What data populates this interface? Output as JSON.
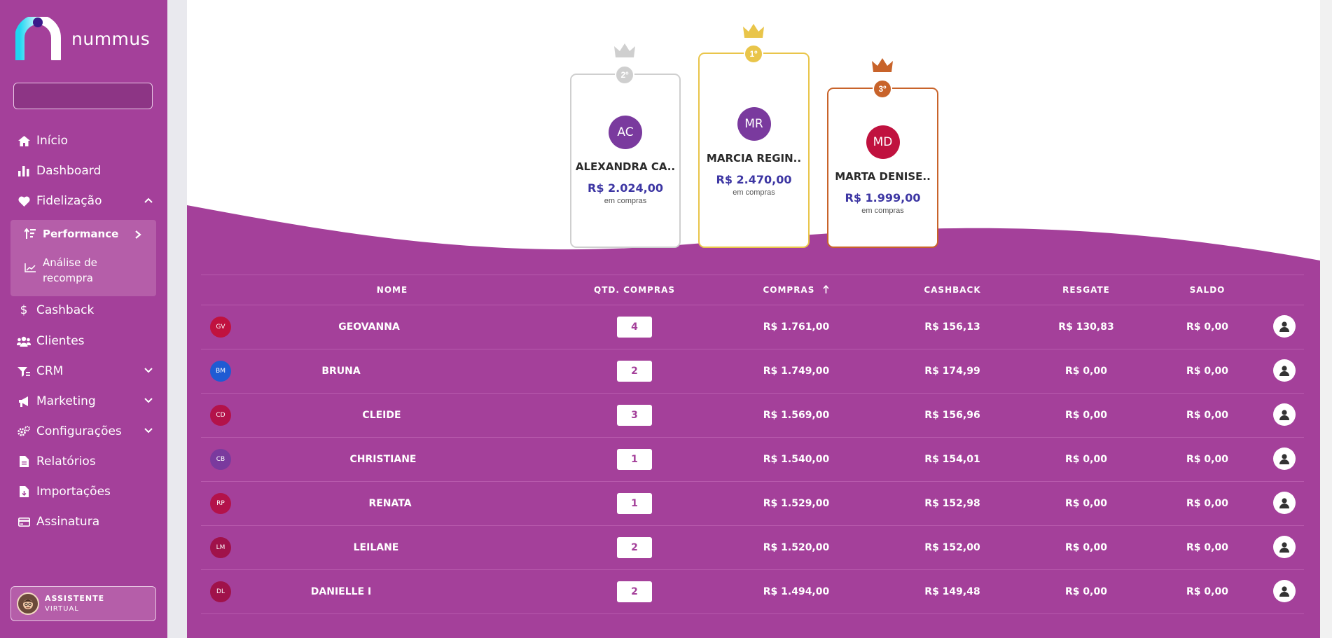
{
  "brand": {
    "name": "nummus"
  },
  "sidebar": {
    "search": {
      "value": "",
      "placeholder": ""
    },
    "items": [
      {
        "label": "Início",
        "icon": "home-icon"
      },
      {
        "label": "Dashboard",
        "icon": "bar-chart-icon"
      },
      {
        "label": "Fidelização",
        "icon": "heart-icon",
        "expanded": true
      },
      {
        "label": "Cashback",
        "icon": "dollar-icon"
      },
      {
        "label": "Clientes",
        "icon": "users-icon"
      },
      {
        "label": "CRM",
        "icon": "funnel-icon"
      },
      {
        "label": "Marketing",
        "icon": "megaphone-icon"
      },
      {
        "label": "Configurações",
        "icon": "gears-icon"
      },
      {
        "label": "Relatórios",
        "icon": "file-icon"
      },
      {
        "label": "Importações",
        "icon": "file-import-icon"
      },
      {
        "label": "Assinatura",
        "icon": "credit-card-icon"
      }
    ],
    "sub_items": [
      {
        "label": "Performance",
        "icon": "sort-amount-icon",
        "active": true
      },
      {
        "label_line1": "Análise de",
        "label_line2": "recompra",
        "icon": "line-chart-icon"
      }
    ],
    "assistant": {
      "line1": "ASSISTENTE",
      "line2": "VIRTUAL"
    }
  },
  "podium": [
    {
      "place": "2º",
      "initials": "AC",
      "name": "ALEXANDRA CA..",
      "amount": "R$ 2.024,00",
      "caption": "em compras",
      "color": "#cfcfcf",
      "avatar_color": "#7a3a9e"
    },
    {
      "place": "1º",
      "initials": "MR",
      "name": "MARCIA REGIN..",
      "amount": "R$ 2.470,00",
      "caption": "em compras",
      "color": "#e9c54a",
      "avatar_color": "#7a3a9e"
    },
    {
      "place": "3º",
      "initials": "MD",
      "name": "MARTA DENISE..",
      "amount": "R$ 1.999,00",
      "caption": "em compras",
      "color": "#c8632a",
      "avatar_color": "#c0123f"
    }
  ],
  "table": {
    "headers": {
      "nome": "NOME",
      "qtd": "QTD. COMPRAS",
      "compras": "COMPRAS",
      "cashback": "CASHBACK",
      "resgate": "RESGATE",
      "saldo": "SALDO"
    },
    "rows": [
      {
        "initials": "GV",
        "avatar_color": "#c0123f",
        "name": "GEOVANNA",
        "qty": "4",
        "compras": "R$ 1.761,00",
        "cashback": "R$ 156,13",
        "resgate": "R$ 130,83",
        "saldo": "R$ 0,00"
      },
      {
        "initials": "BM",
        "avatar_color": "#1f5bd3",
        "name": "BRUNA",
        "qty": "2",
        "compras": "R$ 1.749,00",
        "cashback": "R$ 174,99",
        "resgate": "R$ 0,00",
        "saldo": "R$ 0,00"
      },
      {
        "initials": "CD",
        "avatar_color": "#b3124a",
        "name": "CLEIDE",
        "qty": "3",
        "compras": "R$ 1.569,00",
        "cashback": "R$ 156,96",
        "resgate": "R$ 0,00",
        "saldo": "R$ 0,00"
      },
      {
        "initials": "CB",
        "avatar_color": "#7a3a9e",
        "name": "CHRISTIANE",
        "qty": "1",
        "compras": "R$ 1.540,00",
        "cashback": "R$ 154,01",
        "resgate": "R$ 0,00",
        "saldo": "R$ 0,00"
      },
      {
        "initials": "RP",
        "avatar_color": "#b3124a",
        "name": "RENATA",
        "qty": "1",
        "compras": "R$ 1.529,00",
        "cashback": "R$ 152,98",
        "resgate": "R$ 0,00",
        "saldo": "R$ 0,00"
      },
      {
        "initials": "LM",
        "avatar_color": "#a0124a",
        "name": "LEILANE",
        "qty": "2",
        "compras": "R$ 1.520,00",
        "cashback": "R$ 152,00",
        "resgate": "R$ 0,00",
        "saldo": "R$ 0,00"
      },
      {
        "initials": "DL",
        "avatar_color": "#a0124a",
        "name": "DANIELLE I",
        "qty": "2",
        "compras": "R$ 1.494,00",
        "cashback": "R$ 149,48",
        "resgate": "R$ 0,00",
        "saldo": "R$ 0,00"
      }
    ]
  },
  "colors": {
    "primary": "#a4409a",
    "amount": "#3d36a3",
    "whatsapp": "#26c943"
  }
}
